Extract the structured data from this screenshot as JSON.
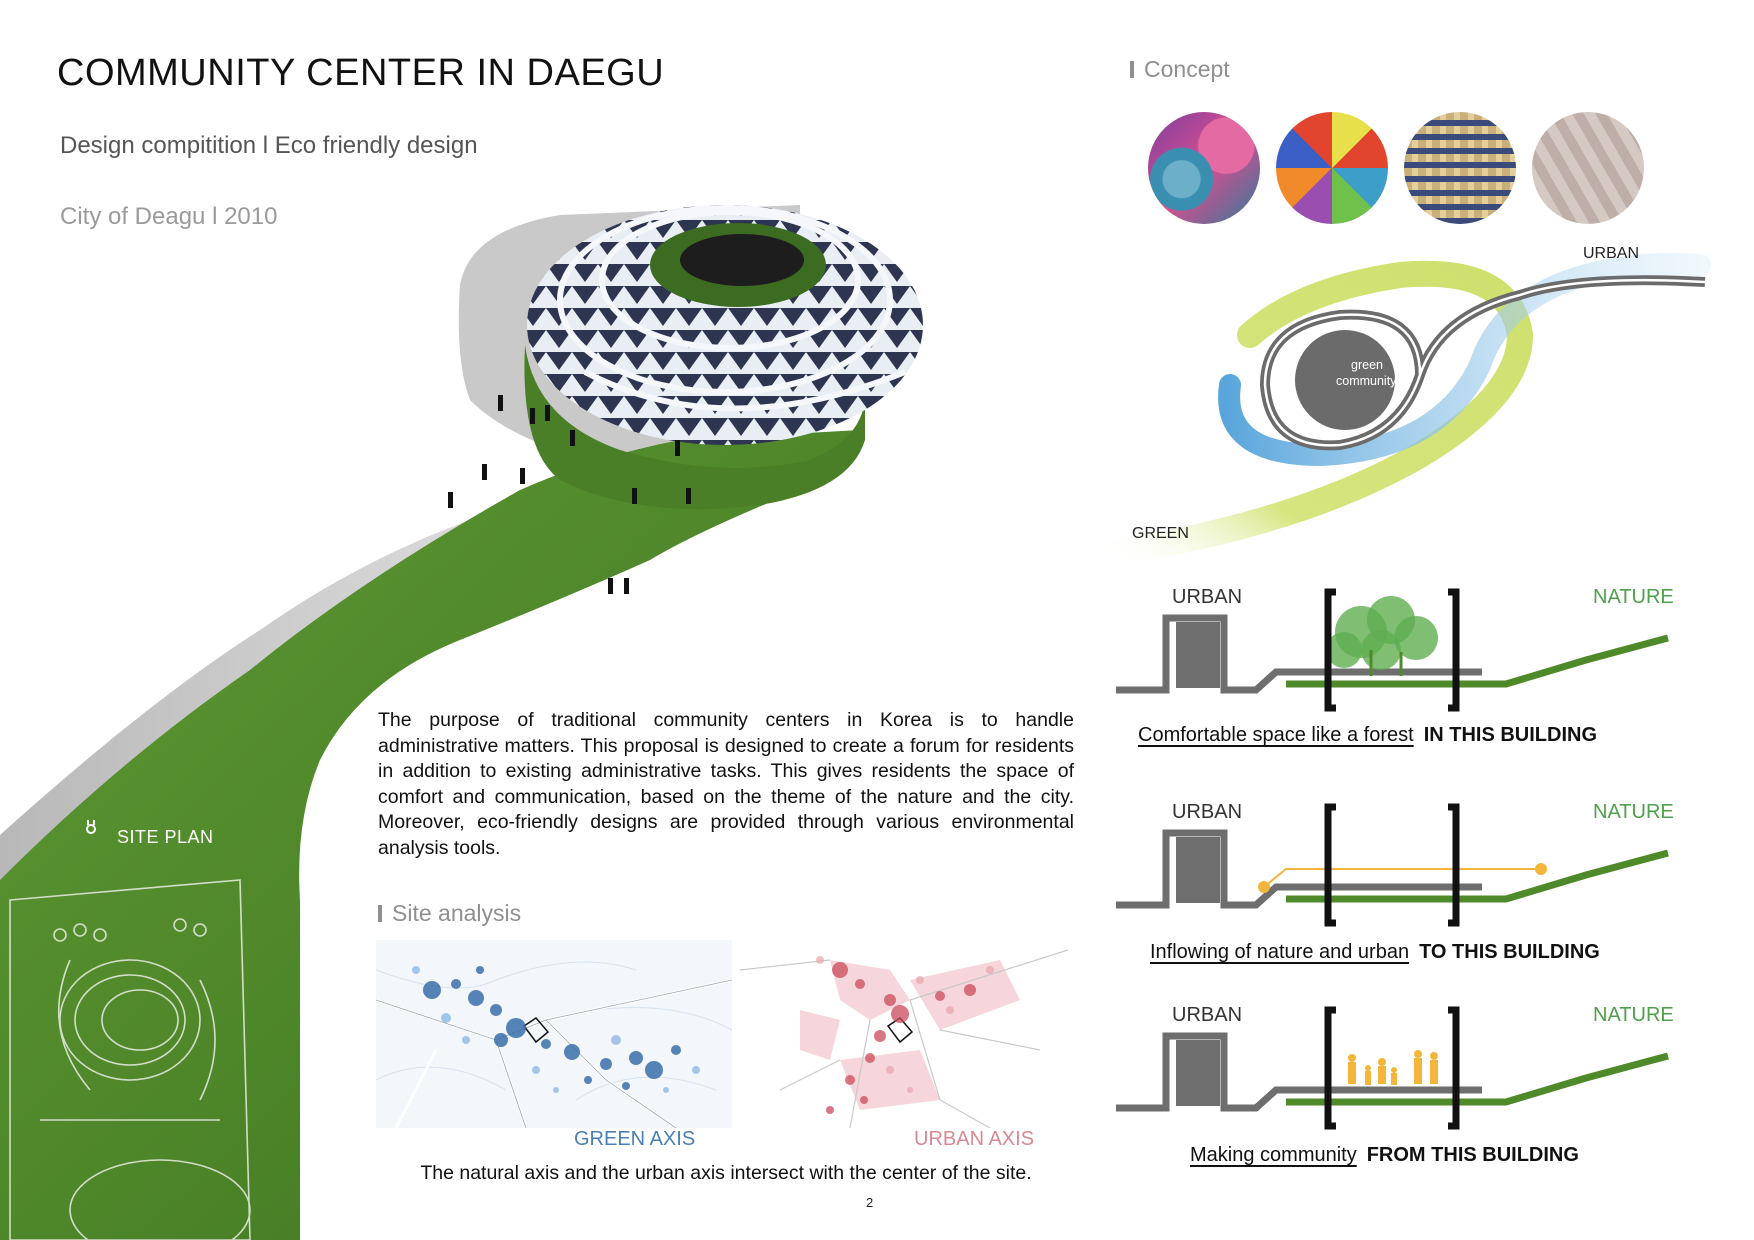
{
  "header": {
    "title": "COMMUNITY CENTER IN DAEGU",
    "subtitle": "Design compitition l Eco friendly design",
    "location_year": "City of Deagu l 2010"
  },
  "concept": {
    "heading": "Concept",
    "urban_label": "URBAN",
    "green_label": "GREEN",
    "center_label_1": "green",
    "center_label_2": "community"
  },
  "description": "The purpose of traditional community centers in Korea is to handle administrative matters. This proposal is designed to create a forum for residents in addition to existing administrative tasks. This gives residents the space of comfort and communication, based on the theme of the nature and the city. Moreover, eco-friendly designs are provided through various environmental analysis tools.",
  "site_plan_label": "SITE PLAN",
  "site_analysis": {
    "heading": "Site analysis",
    "green_axis": "GREEN AXIS",
    "urban_axis": "URBAN AXIS",
    "caption": "The natural axis and the urban axis intersect with the center of the site."
  },
  "diagrams": [
    {
      "urban": "URBAN",
      "nature": "NATURE",
      "caption_underlined": "Comfortable space like a forest",
      "caption_bold": "IN THIS BUILDING"
    },
    {
      "urban": "URBAN",
      "nature": "NATURE",
      "caption_underlined": "Inflowing of nature and urban",
      "caption_bold": "TO THIS BUILDING"
    },
    {
      "urban": "URBAN",
      "nature": "NATURE",
      "caption_underlined": "Making community",
      "caption_bold": "FROM THIS BUILDING"
    }
  ],
  "page_number": "2",
  "colors": {
    "green": "#4f8a2a",
    "nature_text": "#4fa04a",
    "urban_gray": "#6e6e6e",
    "orange": "#f4b63a",
    "sky_blue": "#7fb6e0",
    "lime": "#dbe88a"
  }
}
